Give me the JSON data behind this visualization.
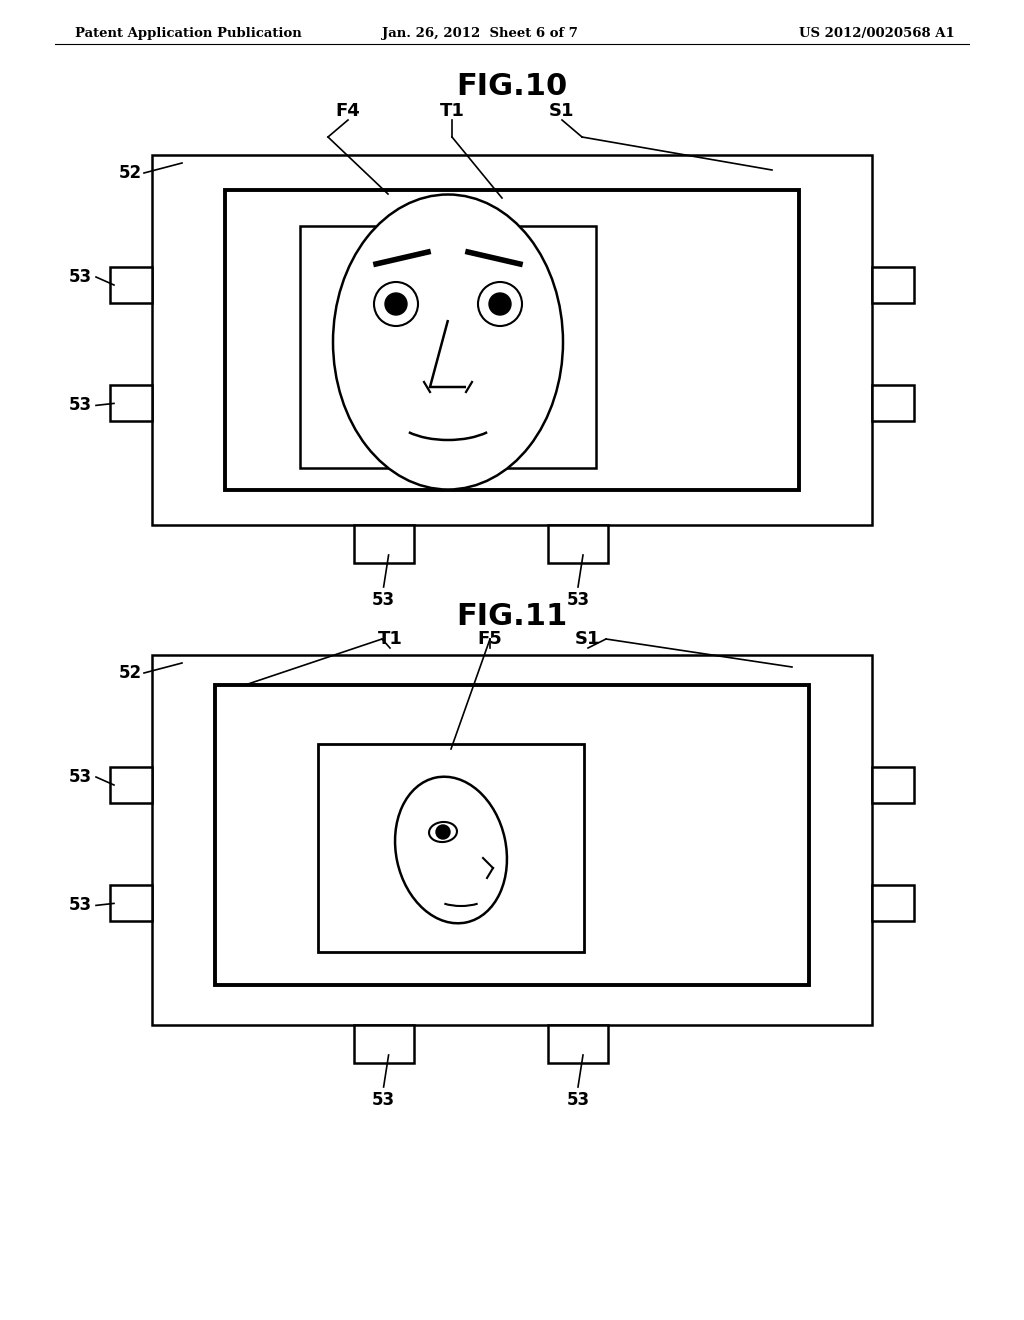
{
  "header_left": "Patent Application Publication",
  "header_center": "Jan. 26, 2012  Sheet 6 of 7",
  "header_right": "US 2012/0020568 A1",
  "fig10_title": "FIG.10",
  "fig11_title": "FIG.11",
  "bg_color": "#ffffff",
  "line_color": "#000000"
}
